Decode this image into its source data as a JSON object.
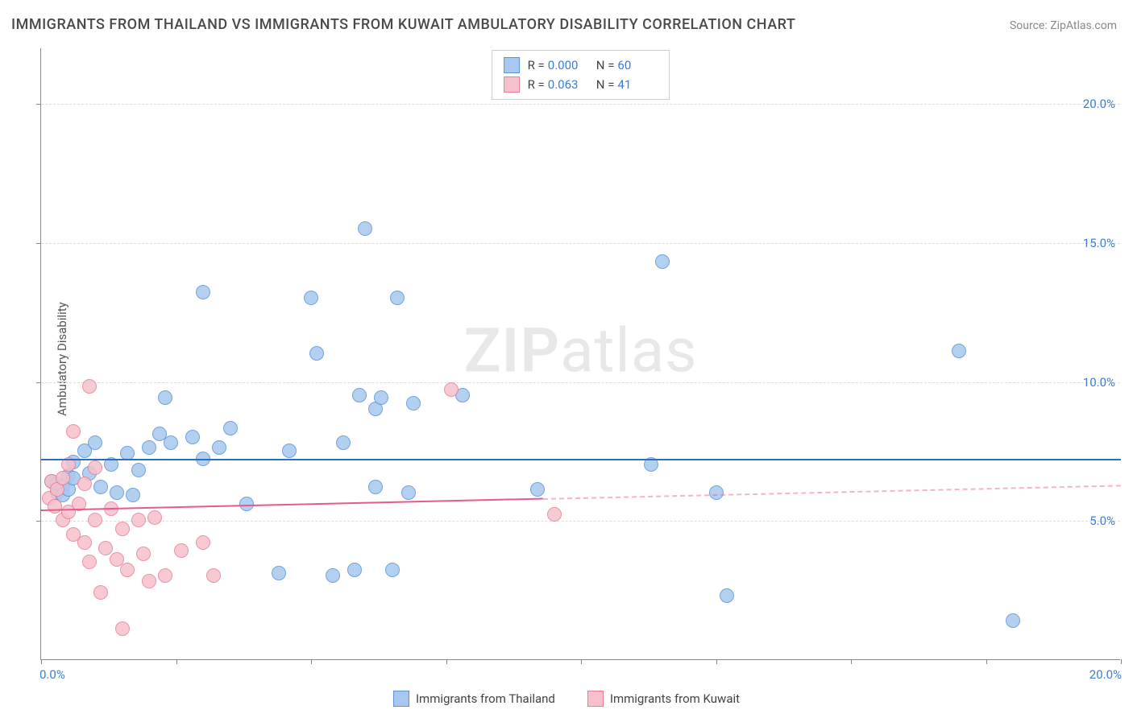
{
  "title": "IMMIGRANTS FROM THAILAND VS IMMIGRANTS FROM KUWAIT AMBULATORY DISABILITY CORRELATION CHART",
  "source": "Source: ZipAtlas.com",
  "yaxis_label": "Ambulatory Disability",
  "watermark_bold": "ZIP",
  "watermark_light": "atlas",
  "chart": {
    "type": "scatter",
    "xlim": [
      0,
      20
    ],
    "ylim": [
      0,
      22
    ],
    "xtick_labels": [
      "0.0%",
      "20.0%"
    ],
    "yticks": [
      5,
      10,
      15,
      20
    ],
    "ytick_labels": [
      "5.0%",
      "10.0%",
      "15.0%",
      "20.0%"
    ],
    "xtick_minor": [
      0,
      2.5,
      5,
      7.5,
      10,
      12.5,
      15,
      17.5,
      20
    ],
    "background": "#ffffff",
    "grid_color": "#dddddd",
    "grid_dash": true,
    "marker_radius": 9,
    "marker_border_width": 1.2,
    "marker_fill_opacity": 0.35,
    "axis_label_color": "#3b7dd8",
    "series": [
      {
        "name": "Immigrants from Thailand",
        "key": "thailand",
        "color_fill": "#a8c8ef",
        "color_border": "#5b93d6",
        "trend_color": "#2d6fb8",
        "trend_width": 2.5,
        "trend_y_start": 7.25,
        "trend_y_end": 7.25,
        "trend_solid_until": 20,
        "R": "0.000",
        "N": "60",
        "points": [
          [
            0.2,
            6.4
          ],
          [
            0.3,
            6.0
          ],
          [
            0.3,
            6.3
          ],
          [
            0.4,
            6.2
          ],
          [
            0.4,
            5.9
          ],
          [
            0.5,
            6.6
          ],
          [
            0.5,
            6.1
          ],
          [
            0.6,
            7.1
          ],
          [
            0.6,
            6.5
          ],
          [
            0.8,
            7.5
          ],
          [
            0.9,
            6.7
          ],
          [
            1.0,
            7.8
          ],
          [
            1.1,
            6.2
          ],
          [
            1.3,
            7.0
          ],
          [
            1.4,
            6.0
          ],
          [
            1.6,
            7.4
          ],
          [
            1.7,
            5.9
          ],
          [
            1.8,
            6.8
          ],
          [
            2.0,
            7.6
          ],
          [
            2.2,
            8.1
          ],
          [
            2.3,
            9.4
          ],
          [
            2.4,
            7.8
          ],
          [
            2.8,
            8.0
          ],
          [
            3.0,
            7.2
          ],
          [
            3.0,
            13.2
          ],
          [
            3.3,
            7.6
          ],
          [
            3.5,
            8.3
          ],
          [
            3.8,
            5.6
          ],
          [
            4.4,
            3.1
          ],
          [
            4.6,
            7.5
          ],
          [
            5.0,
            13.0
          ],
          [
            5.1,
            11.0
          ],
          [
            5.4,
            3.0
          ],
          [
            5.6,
            7.8
          ],
          [
            5.8,
            3.2
          ],
          [
            5.9,
            9.5
          ],
          [
            6.0,
            15.5
          ],
          [
            6.2,
            6.2
          ],
          [
            6.2,
            9.0
          ],
          [
            6.3,
            9.4
          ],
          [
            6.5,
            3.2
          ],
          [
            6.6,
            13.0
          ],
          [
            6.8,
            6.0
          ],
          [
            6.9,
            9.2
          ],
          [
            7.8,
            9.5
          ],
          [
            9.2,
            6.1
          ],
          [
            11.3,
            7.0
          ],
          [
            11.5,
            14.3
          ],
          [
            12.5,
            6.0
          ],
          [
            12.7,
            2.3
          ],
          [
            17.0,
            11.1
          ],
          [
            18.0,
            1.4
          ]
        ]
      },
      {
        "name": "Immigrants from Kuwait",
        "key": "kuwait",
        "color_fill": "#f6c1cc",
        "color_border": "#e77f9a",
        "trend_color": "#e85a8a",
        "trend_width": 2,
        "trend_y_start": 5.4,
        "trend_y_end": 6.3,
        "trend_solid_until": 9.3,
        "R": "0.063",
        "N": "41",
        "points": [
          [
            0.15,
            5.8
          ],
          [
            0.2,
            6.4
          ],
          [
            0.25,
            5.5
          ],
          [
            0.3,
            6.1
          ],
          [
            0.4,
            5.0
          ],
          [
            0.4,
            6.5
          ],
          [
            0.5,
            5.3
          ],
          [
            0.5,
            7.0
          ],
          [
            0.6,
            4.5
          ],
          [
            0.6,
            8.2
          ],
          [
            0.7,
            5.6
          ],
          [
            0.8,
            4.2
          ],
          [
            0.8,
            6.3
          ],
          [
            0.9,
            3.5
          ],
          [
            0.9,
            9.8
          ],
          [
            1.0,
            5.0
          ],
          [
            1.0,
            6.9
          ],
          [
            1.1,
            2.4
          ],
          [
            1.2,
            4.0
          ],
          [
            1.3,
            5.4
          ],
          [
            1.4,
            3.6
          ],
          [
            1.5,
            4.7
          ],
          [
            1.5,
            1.1
          ],
          [
            1.6,
            3.2
          ],
          [
            1.8,
            5.0
          ],
          [
            1.9,
            3.8
          ],
          [
            2.0,
            2.8
          ],
          [
            2.1,
            5.1
          ],
          [
            2.3,
            3.0
          ],
          [
            2.6,
            3.9
          ],
          [
            3.0,
            4.2
          ],
          [
            3.2,
            3.0
          ],
          [
            7.6,
            9.7
          ],
          [
            9.5,
            5.2
          ]
        ]
      }
    ]
  },
  "legend_top": {
    "r_label": "R =",
    "n_label": "N ="
  },
  "legend_bottom": [
    {
      "key": "thailand"
    },
    {
      "key": "kuwait"
    }
  ]
}
